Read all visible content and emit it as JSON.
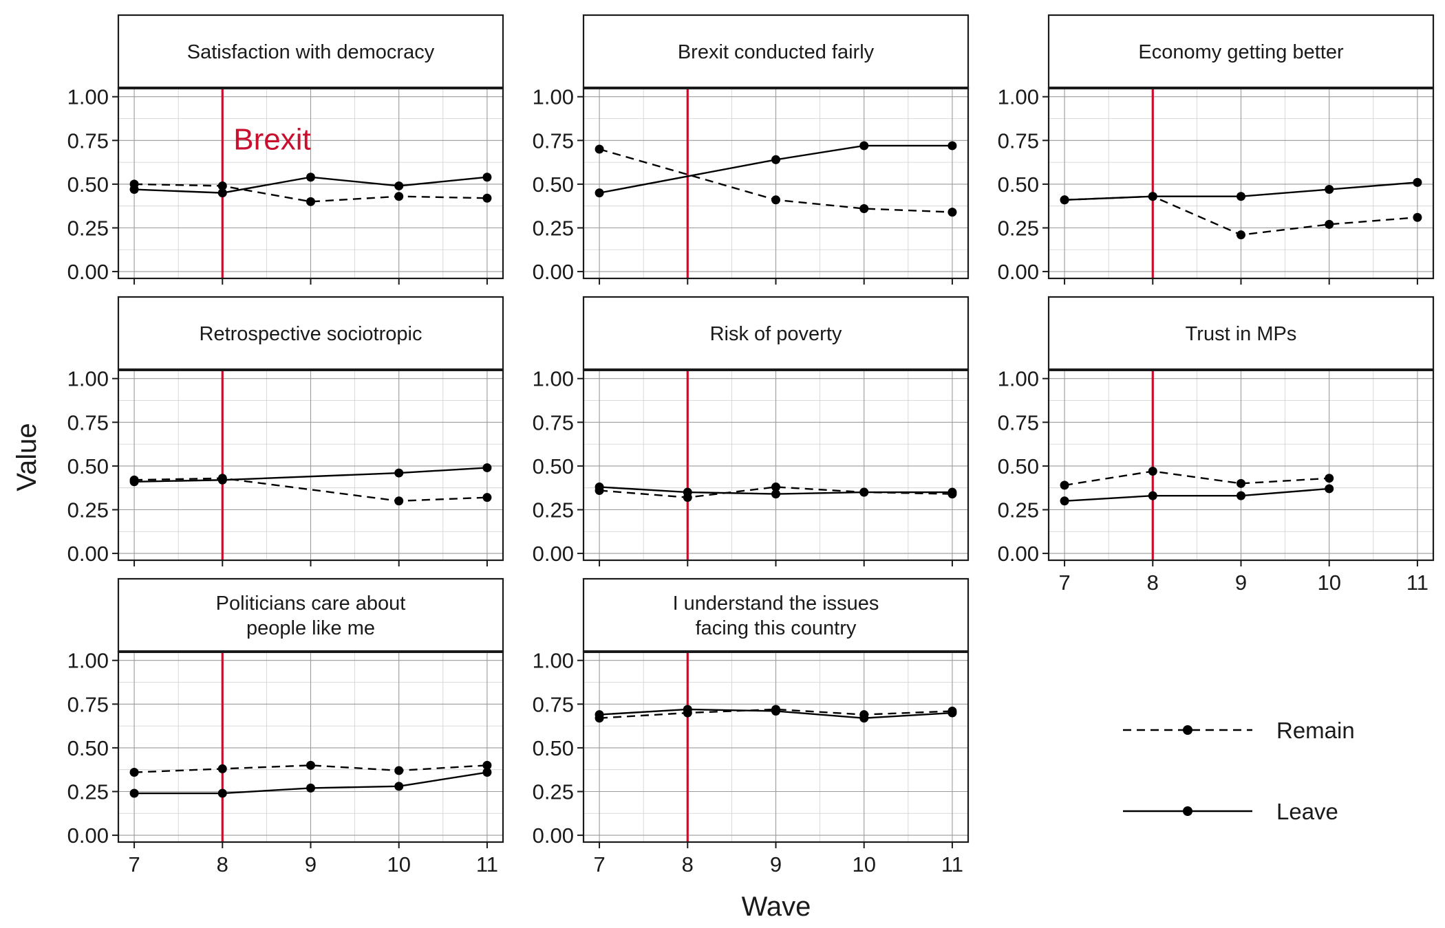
{
  "chart_data": {
    "type": "line",
    "layout": "facet-grid 3x3",
    "xlabel": "Wave",
    "ylabel": "Value",
    "x": [
      7,
      8,
      9,
      10,
      11
    ],
    "xticks": [
      "7",
      "8",
      "9",
      "10",
      "11"
    ],
    "ylim": [
      0,
      1
    ],
    "yticks": [
      "0.00",
      "0.25",
      "0.50",
      "0.75",
      "1.00"
    ],
    "grid": true,
    "reference_line": {
      "x": 8,
      "color": "#c8102e",
      "label": "Brexit"
    },
    "legend": {
      "position": "bottom-right",
      "entries": [
        {
          "name": "Remain",
          "linestyle": "dashed"
        },
        {
          "name": "Leave",
          "linestyle": "solid"
        }
      ]
    },
    "panels": [
      {
        "title": [
          "Satisfaction with democracy"
        ],
        "series": [
          {
            "name": "Remain",
            "points": [
              [
                7,
                0.5
              ],
              [
                8,
                0.49
              ],
              [
                9,
                0.4
              ],
              [
                10,
                0.43
              ],
              [
                11,
                0.42
              ]
            ]
          },
          {
            "name": "Leave",
            "points": [
              [
                7,
                0.47
              ],
              [
                8,
                0.45
              ],
              [
                9,
                0.54
              ],
              [
                10,
                0.49
              ],
              [
                11,
                0.54
              ]
            ]
          }
        ]
      },
      {
        "title": [
          "Brexit conducted fairly"
        ],
        "series": [
          {
            "name": "Remain",
            "points": [
              [
                7,
                0.7
              ],
              [
                9,
                0.41
              ],
              [
                10,
                0.36
              ],
              [
                11,
                0.34
              ]
            ]
          },
          {
            "name": "Leave",
            "points": [
              [
                7,
                0.45
              ],
              [
                9,
                0.64
              ],
              [
                10,
                0.72
              ],
              [
                11,
                0.72
              ]
            ]
          }
        ]
      },
      {
        "title": [
          "Economy getting better"
        ],
        "series": [
          {
            "name": "Remain",
            "points": [
              [
                7,
                0.41
              ],
              [
                8,
                0.43
              ],
              [
                9,
                0.21
              ],
              [
                10,
                0.27
              ],
              [
                11,
                0.31
              ]
            ]
          },
          {
            "name": "Leave",
            "points": [
              [
                7,
                0.41
              ],
              [
                8,
                0.43
              ],
              [
                9,
                0.43
              ],
              [
                10,
                0.47
              ],
              [
                11,
                0.51
              ]
            ]
          }
        ]
      },
      {
        "title": [
          "Retrospective sociotropic"
        ],
        "series": [
          {
            "name": "Remain",
            "points": [
              [
                7,
                0.42
              ],
              [
                8,
                0.43
              ],
              [
                10,
                0.3
              ],
              [
                11,
                0.32
              ]
            ]
          },
          {
            "name": "Leave",
            "points": [
              [
                7,
                0.41
              ],
              [
                8,
                0.42
              ],
              [
                10,
                0.46
              ],
              [
                11,
                0.49
              ]
            ]
          }
        ]
      },
      {
        "title": [
          "Risk of poverty"
        ],
        "series": [
          {
            "name": "Remain",
            "points": [
              [
                7,
                0.36
              ],
              [
                8,
                0.32
              ],
              [
                9,
                0.38
              ],
              [
                10,
                0.35
              ],
              [
                11,
                0.34
              ]
            ]
          },
          {
            "name": "Leave",
            "points": [
              [
                7,
                0.38
              ],
              [
                8,
                0.35
              ],
              [
                9,
                0.34
              ],
              [
                10,
                0.35
              ],
              [
                11,
                0.35
              ]
            ]
          }
        ]
      },
      {
        "title": [
          "Trust in MPs"
        ],
        "series": [
          {
            "name": "Remain",
            "points": [
              [
                7,
                0.39
              ],
              [
                8,
                0.47
              ],
              [
                9,
                0.4
              ],
              [
                10,
                0.43
              ]
            ]
          },
          {
            "name": "Leave",
            "points": [
              [
                7,
                0.3
              ],
              [
                8,
                0.33
              ],
              [
                9,
                0.33
              ],
              [
                10,
                0.37
              ]
            ]
          }
        ]
      },
      {
        "title": [
          "Politicians care about",
          "people like me"
        ],
        "series": [
          {
            "name": "Remain",
            "points": [
              [
                7,
                0.36
              ],
              [
                8,
                0.38
              ],
              [
                9,
                0.4
              ],
              [
                10,
                0.37
              ],
              [
                11,
                0.4
              ]
            ]
          },
          {
            "name": "Leave",
            "points": [
              [
                7,
                0.24
              ],
              [
                8,
                0.24
              ],
              [
                9,
                0.27
              ],
              [
                10,
                0.28
              ],
              [
                11,
                0.36
              ]
            ]
          }
        ]
      },
      {
        "title": [
          "I understand the issues",
          "facing this country"
        ],
        "series": [
          {
            "name": "Remain",
            "points": [
              [
                7,
                0.67
              ],
              [
                8,
                0.7
              ],
              [
                9,
                0.72
              ],
              [
                10,
                0.69
              ],
              [
                11,
                0.71
              ]
            ]
          },
          {
            "name": "Leave",
            "points": [
              [
                7,
                0.69
              ],
              [
                8,
                0.72
              ],
              [
                9,
                0.71
              ],
              [
                10,
                0.67
              ],
              [
                11,
                0.7
              ]
            ]
          }
        ]
      }
    ]
  }
}
